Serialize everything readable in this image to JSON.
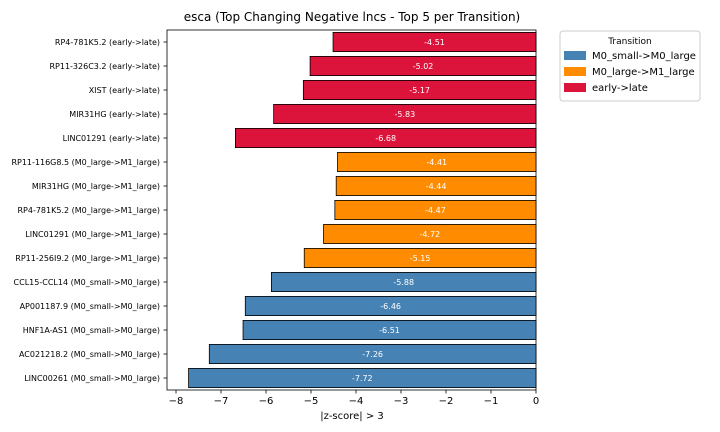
{
  "chart_data": {
    "type": "bar",
    "orientation": "horizontal",
    "title": "esca (Top Changing Negative lncs - Top 5 per Transition)",
    "xlabel": "|z-score| > 3",
    "ylabel": "",
    "xlim": [
      -8.2,
      0
    ],
    "xticks": [
      -8,
      -7,
      -6,
      -5,
      -4,
      -3,
      -2,
      -1,
      0
    ],
    "categories": [
      "RP4-781K5.2 (early->late)",
      "RP11-326C3.2 (early->late)",
      "XIST (early->late)",
      "MIR31HG (early->late)",
      "LINC01291 (early->late)",
      "RP11-116G8.5 (M0_large->M1_large)",
      "MIR31HG (M0_large->M1_large)",
      "RP4-781K5.2 (M0_large->M1_large)",
      "LINC01291 (M0_large->M1_large)",
      "RP11-256I9.2 (M0_large->M1_large)",
      "CCL15-CCL14 (M0_small->M0_large)",
      "AP001187.9 (M0_small->M0_large)",
      "HNF1A-AS1 (M0_small->M0_large)",
      "AC021218.2 (M0_small->M0_large)",
      "LINC00261 (M0_small->M0_large)"
    ],
    "values": [
      -4.51,
      -5.02,
      -5.17,
      -5.83,
      -6.68,
      -4.41,
      -4.44,
      -4.47,
      -4.72,
      -5.15,
      -5.88,
      -6.46,
      -6.51,
      -7.26,
      -7.72
    ],
    "value_labels": [
      "-4.51",
      "-5.02",
      "-5.17",
      "-5.83",
      "-6.68",
      "-4.41",
      "-4.44",
      "-4.47",
      "-4.72",
      "-5.15",
      "-5.88",
      "-6.46",
      "-6.51",
      "-7.26",
      "-7.72"
    ],
    "groups": [
      "early->late",
      "early->late",
      "early->late",
      "early->late",
      "early->late",
      "M0_large->M1_large",
      "M0_large->M1_large",
      "M0_large->M1_large",
      "M0_large->M1_large",
      "M0_large->M1_large",
      "M0_small->M0_large",
      "M0_small->M0_large",
      "M0_small->M0_large",
      "M0_small->M0_large",
      "M0_small->M0_large"
    ],
    "legend": {
      "title": "Transition",
      "placement": "outside-right-top",
      "entries": [
        {
          "label": "M0_small->M0_large",
          "color": "#4682b4"
        },
        {
          "label": "M0_large->M1_large",
          "color": "#ff8c00"
        },
        {
          "label": "early->late",
          "color": "#dc143c"
        }
      ]
    },
    "grid": false
  }
}
